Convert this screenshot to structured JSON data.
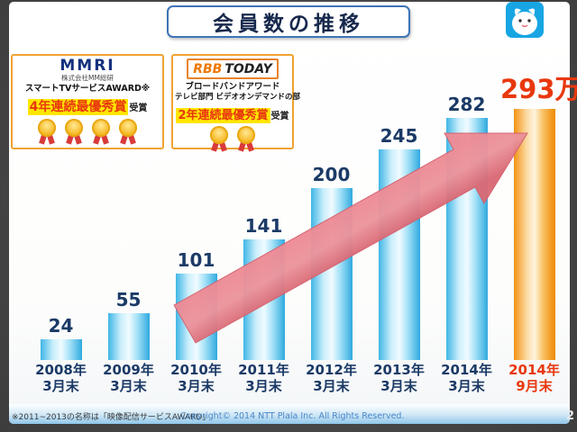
{
  "slide": {
    "title": "会員数の推移",
    "page_number": "2",
    "footnote": "※2011~2013の名称は「映像配信サービスAWARD」",
    "copyright": "Copyright© 2014 NTT Plala Inc. All Rights Reserved."
  },
  "awards": [
    {
      "logo_main": "MMRI",
      "logo_sub": "株式会社MM総研",
      "award_name": "スマートTVサービスAWARD※",
      "achievement": "4年連続最優秀賞",
      "achievement_suffix": "受賞",
      "medal_count": 4
    },
    {
      "logo_main": "RBB",
      "logo_accent": "TODAY",
      "award_name": "ブロードバンドアワード",
      "award_category": "テレビ部門 ビデオオンデマンドの部",
      "achievement": "2年連続最優秀賞",
      "achievement_suffix": "受賞",
      "medal_count": 2
    }
  ],
  "chart_data": {
    "type": "bar",
    "title": "会員数の推移",
    "categories": [
      "2008年3月末",
      "2009年3月末",
      "2010年3月末",
      "2011年3月末",
      "2012年3月末",
      "2013年3月末",
      "2014年3月末",
      "2014年9月末"
    ],
    "category_lines": [
      [
        "2008年",
        "3月末"
      ],
      [
        "2009年",
        "3月末"
      ],
      [
        "2010年",
        "3月末"
      ],
      [
        "2011年",
        "3月末"
      ],
      [
        "2012年",
        "3月末"
      ],
      [
        "2013年",
        "3月末"
      ],
      [
        "2014年",
        "3月末"
      ],
      [
        "2014年",
        "9月末"
      ]
    ],
    "values": [
      24,
      55,
      101,
      141,
      200,
      245,
      282,
      293
    ],
    "value_labels": [
      "24",
      "55",
      "101",
      "141",
      "200",
      "245",
      "282",
      "293万"
    ],
    "unit": "万",
    "highlight_index": 7,
    "ylim": [
      0,
      300
    ],
    "grid": false,
    "legend": "none",
    "colors": {
      "bar_default": "#59c2ec",
      "bar_highlight": "#f59f19",
      "value_label": "#1b3a66",
      "value_label_highlight": "#e8380d",
      "category_label": "#1b3a66",
      "category_label_highlight": "#e8380d",
      "trend_arrow": "#e8737f"
    },
    "annotations": [
      "upward trend arrow from 2010 bars toward 293万"
    ]
  }
}
